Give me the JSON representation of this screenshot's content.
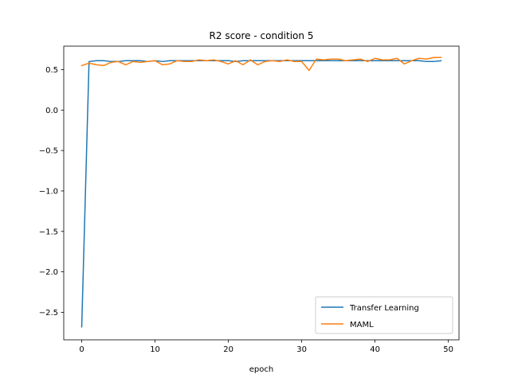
{
  "chart_data": {
    "type": "line",
    "title": "R2 score - condition 5",
    "xlabel": "epoch",
    "ylabel": "",
    "xlim": [
      -2.45,
      51.45
    ],
    "ylim": [
      -2.84,
      0.79
    ],
    "xticks": [
      0,
      10,
      20,
      30,
      40,
      50
    ],
    "yticks": [
      0.5,
      0.0,
      -0.5,
      -1.0,
      -1.5,
      -2.0,
      -2.5
    ],
    "ytick_labels": [
      "0.5",
      "0.0",
      "−0.5",
      "−1.0",
      "−1.5",
      "−2.0",
      "−2.5"
    ],
    "grid": false,
    "legend_position": "lower-right",
    "series": [
      {
        "name": "Transfer Learning",
        "color": "#1f77b4",
        "x": [
          0,
          1,
          2,
          3,
          4,
          5,
          6,
          7,
          8,
          9,
          10,
          11,
          12,
          13,
          14,
          15,
          16,
          17,
          18,
          19,
          20,
          21,
          22,
          23,
          24,
          25,
          26,
          27,
          28,
          29,
          30,
          31,
          32,
          33,
          34,
          35,
          36,
          37,
          38,
          39,
          40,
          41,
          42,
          43,
          44,
          45,
          46,
          47,
          48,
          49
        ],
        "values": [
          -2.68,
          0.6,
          0.61,
          0.61,
          0.6,
          0.6,
          0.61,
          0.61,
          0.61,
          0.6,
          0.61,
          0.6,
          0.61,
          0.61,
          0.61,
          0.61,
          0.61,
          0.61,
          0.61,
          0.61,
          0.61,
          0.6,
          0.61,
          0.61,
          0.61,
          0.61,
          0.61,
          0.61,
          0.61,
          0.61,
          0.61,
          0.61,
          0.61,
          0.61,
          0.61,
          0.61,
          0.61,
          0.61,
          0.61,
          0.61,
          0.61,
          0.61,
          0.61,
          0.61,
          0.61,
          0.61,
          0.61,
          0.6,
          0.6,
          0.61
        ]
      },
      {
        "name": "MAML",
        "color": "#ff7f0e",
        "x": [
          0,
          1,
          2,
          3,
          4,
          5,
          6,
          7,
          8,
          9,
          10,
          11,
          12,
          13,
          14,
          15,
          16,
          17,
          18,
          19,
          20,
          21,
          22,
          23,
          24,
          25,
          26,
          27,
          28,
          29,
          30,
          31,
          32,
          33,
          34,
          35,
          36,
          37,
          38,
          39,
          40,
          41,
          42,
          43,
          44,
          45,
          46,
          47,
          48,
          49
        ],
        "values": [
          0.55,
          0.58,
          0.56,
          0.55,
          0.59,
          0.6,
          0.56,
          0.6,
          0.59,
          0.6,
          0.61,
          0.56,
          0.57,
          0.61,
          0.6,
          0.6,
          0.62,
          0.61,
          0.62,
          0.6,
          0.57,
          0.61,
          0.56,
          0.62,
          0.56,
          0.6,
          0.61,
          0.6,
          0.62,
          0.6,
          0.6,
          0.49,
          0.63,
          0.62,
          0.63,
          0.63,
          0.61,
          0.62,
          0.63,
          0.6,
          0.64,
          0.62,
          0.62,
          0.64,
          0.57,
          0.61,
          0.64,
          0.63,
          0.65,
          0.65
        ]
      }
    ]
  }
}
